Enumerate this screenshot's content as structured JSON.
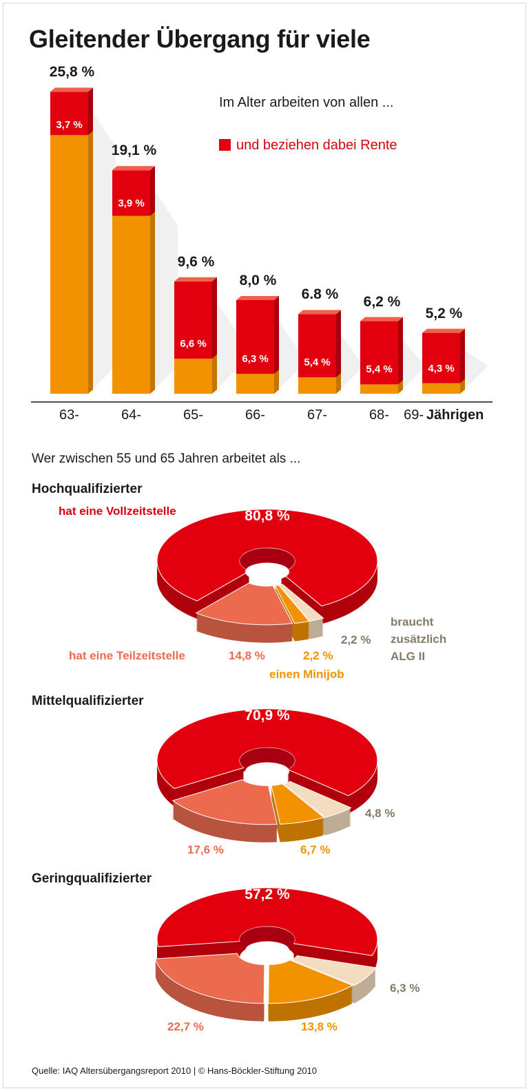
{
  "title": "Gleitender Übergang für viele",
  "colors": {
    "total": "#f39200",
    "rente": "#e2000f",
    "vollzeit": "#e2000f",
    "teilzeit": "#ec6b4f",
    "minijob": "#f39200",
    "alg2": "#f3dcc0"
  },
  "chart_data": [
    {
      "type": "bar",
      "stacked": true,
      "legend_intro": "Im Alter arbeiten von allen ...",
      "legend_red": "und beziehen dabei Rente",
      "categories": [
        "63-",
        "64-",
        "65-",
        "66-",
        "67-",
        "68-",
        "69-"
      ],
      "axis_suffix": "Jährigen",
      "total_labels": [
        "25,8 %",
        "19,1 %",
        "9,6 %",
        "8,0 %",
        "6.8 %",
        "6,2 %",
        "5,2 %"
      ],
      "totals": [
        25.8,
        19.1,
        9.6,
        8.0,
        6.8,
        6.2,
        5.2
      ],
      "rente": [
        3.7,
        3.9,
        6.6,
        6.3,
        5.4,
        5.4,
        4.3
      ],
      "rente_labels": [
        "3,7 %",
        "3,9 %",
        "6,6 %",
        "6,3 %",
        "5,4 %",
        "5,4 %",
        "4,3 %"
      ],
      "ylim": [
        0,
        26
      ]
    },
    {
      "type": "pie",
      "donut": true,
      "intro": "Wer zwischen 55 und 65 Jahren arbeitet als ...",
      "title": "Hochqualifizierter",
      "slices": [
        {
          "key": "vollzeit",
          "value": 80.8,
          "label": "80,8 %",
          "name": "hat eine Vollzeitstelle"
        },
        {
          "key": "alg2",
          "value": 2.2,
          "label": "2,2 %",
          "name": "braucht zusätzlich ALG II"
        },
        {
          "key": "minijob",
          "value": 2.2,
          "label": "2,2 %",
          "name": "einen Minijob"
        },
        {
          "key": "teilzeit",
          "value": 14.8,
          "label": "14,8 %",
          "name": "hat eine Teilzeitstelle"
        }
      ],
      "name_lines_alg2": [
        "braucht",
        "zusätzlich",
        "ALG II"
      ]
    },
    {
      "type": "pie",
      "donut": true,
      "title": "Mittelqualifizierter",
      "slices": [
        {
          "key": "vollzeit",
          "value": 70.9,
          "label": "70,9 %"
        },
        {
          "key": "alg2",
          "value": 4.8,
          "label": "4,8 %"
        },
        {
          "key": "minijob",
          "value": 6.7,
          "label": "6,7 %"
        },
        {
          "key": "teilzeit",
          "value": 17.6,
          "label": "17,6 %"
        }
      ]
    },
    {
      "type": "pie",
      "donut": true,
      "title": "Geringqualifizierter",
      "slices": [
        {
          "key": "vollzeit",
          "value": 57.2,
          "label": "57,2 %"
        },
        {
          "key": "alg2",
          "value": 6.3,
          "label": "6,3 %"
        },
        {
          "key": "minijob",
          "value": 13.8,
          "label": "13,8 %"
        },
        {
          "key": "teilzeit",
          "value": 22.7,
          "label": "22,7 %"
        }
      ]
    }
  ],
  "source": "Quelle: IAQ Altersübergangsreport 2010 | © Hans-Böckler-Stiftung 2010"
}
